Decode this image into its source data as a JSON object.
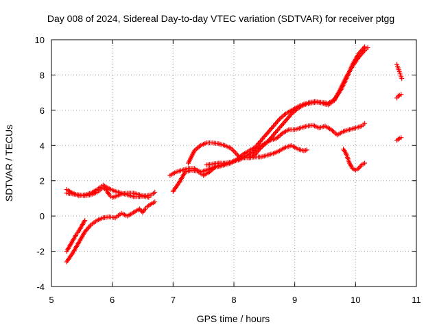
{
  "chart_data": {
    "type": "scatter",
    "title": "Day 008 of 2024, Sidereal Day-to-day VTEC variation (SDTVAR) for receiver ptgg",
    "xlabel": "GPS time / hours",
    "ylabel": "SDTVAR / TECUs",
    "xlim": [
      5,
      11
    ],
    "ylim": [
      -4,
      10
    ],
    "xticks": [
      "5",
      "6",
      "7",
      "8",
      "9",
      "10",
      "11"
    ],
    "yticks": [
      "-4",
      "-2",
      "0",
      "2",
      "4",
      "6",
      "8",
      "10"
    ],
    "grid": true,
    "marker": "plus",
    "color": "#ff0000",
    "series": [
      {
        "x": [
          5.25,
          5.35,
          5.45,
          5.55,
          5.65,
          5.75,
          5.85,
          5.95,
          6.05,
          6.15,
          6.25,
          6.35,
          6.45,
          6.55,
          6.65,
          6.7
        ],
        "y": [
          1.5,
          1.3,
          1.15,
          1.2,
          1.3,
          1.5,
          1.75,
          1.55,
          1.4,
          1.3,
          1.2,
          1.1,
          1.1,
          1.15,
          1.2,
          1.35
        ]
      },
      {
        "x": [
          5.25,
          5.35,
          5.45,
          5.55,
          5.65,
          5.75,
          5.85,
          5.9,
          5.95,
          6.0,
          6.05,
          6.15,
          6.25,
          6.35,
          6.45,
          6.55,
          6.6
        ],
        "y": [
          1.3,
          1.25,
          1.2,
          1.15,
          1.2,
          1.35,
          1.6,
          1.5,
          1.2,
          1.05,
          1.1,
          1.25,
          1.3,
          1.3,
          1.2,
          1.1,
          1.05
        ]
      },
      {
        "x": [
          5.25,
          5.3,
          5.35,
          5.4,
          5.45,
          5.5,
          5.55
        ],
        "y": [
          -2.0,
          -1.7,
          -1.4,
          -1.1,
          -0.85,
          -0.55,
          -0.25
        ]
      },
      {
        "x": [
          5.25,
          5.35,
          5.45,
          5.55,
          5.65,
          5.75,
          5.85,
          5.95,
          6.05,
          6.15,
          6.25,
          6.35,
          6.45,
          6.5,
          6.55,
          6.6,
          6.7
        ],
        "y": [
          -2.6,
          -2.1,
          -1.5,
          -0.9,
          -0.5,
          -0.25,
          -0.1,
          -0.05,
          -0.1,
          0.15,
          0.0,
          0.2,
          0.4,
          0.2,
          0.45,
          0.6,
          0.8
        ]
      },
      {
        "x": [
          6.95,
          7.05,
          7.15,
          7.25,
          7.35,
          7.45,
          7.55,
          7.65,
          7.75,
          7.85,
          7.95,
          8.05,
          8.15,
          8.25,
          8.35,
          8.45,
          8.55,
          8.65,
          8.75,
          8.85,
          8.95,
          9.05,
          9.15,
          9.2
        ],
        "y": [
          2.3,
          2.5,
          2.6,
          2.7,
          2.7,
          2.5,
          2.6,
          2.75,
          2.8,
          2.9,
          3.0,
          3.2,
          3.3,
          3.3,
          3.35,
          3.35,
          3.45,
          3.55,
          3.7,
          3.9,
          4.0,
          3.8,
          3.7,
          3.75
        ]
      },
      {
        "x": [
          7.0,
          7.1,
          7.2,
          7.3,
          7.4,
          7.5,
          7.6,
          7.7,
          7.8,
          7.9,
          8.0,
          8.1,
          8.2,
          8.3,
          8.4,
          8.5,
          8.6,
          8.7,
          8.8,
          8.9,
          9.0,
          9.1,
          9.2,
          9.3,
          9.4,
          9.5,
          9.6,
          9.7,
          9.8,
          9.9,
          10.0,
          10.1,
          10.15
        ],
        "y": [
          1.4,
          1.9,
          2.5,
          2.6,
          2.55,
          2.3,
          2.5,
          2.8,
          2.9,
          3.0,
          3.1,
          3.2,
          3.4,
          3.6,
          3.9,
          4.1,
          4.3,
          4.4,
          4.7,
          4.9,
          4.9,
          5.0,
          5.1,
          5.15,
          5.0,
          5.1,
          4.9,
          4.6,
          4.8,
          4.9,
          5.0,
          5.1,
          5.25
        ]
      },
      {
        "x": [
          7.25,
          7.35,
          7.45,
          7.55,
          7.65,
          7.75,
          7.85,
          7.95,
          8.05,
          8.1
        ],
        "y": [
          3.0,
          3.7,
          4.0,
          4.15,
          4.15,
          4.1,
          4.0,
          3.85,
          3.5,
          3.3
        ]
      },
      {
        "x": [
          7.55,
          7.65,
          7.75,
          7.85,
          7.95,
          8.05,
          8.15,
          8.25,
          8.35,
          8.45,
          8.55,
          8.65,
          8.75,
          8.85,
          8.95,
          9.05,
          9.15,
          9.25,
          9.35,
          9.45,
          9.55,
          9.65,
          9.75,
          9.85,
          9.95,
          10.05,
          10.15,
          10.2
        ],
        "y": [
          2.9,
          2.95,
          3.0,
          3.0,
          3.05,
          3.2,
          3.5,
          3.7,
          3.9,
          4.3,
          4.7,
          5.1,
          5.5,
          5.8,
          6.0,
          6.2,
          6.35,
          6.45,
          6.5,
          6.4,
          6.3,
          6.55,
          7.2,
          7.9,
          8.5,
          9.0,
          9.4,
          9.55
        ]
      },
      {
        "x": [
          8.25,
          8.35,
          8.45,
          8.55,
          8.65,
          8.75,
          8.85,
          8.95,
          9.05,
          9.15,
          9.25,
          9.35,
          9.45,
          9.55,
          9.65,
          9.75,
          9.85,
          9.95,
          10.05,
          10.15
        ],
        "y": [
          3.3,
          3.5,
          3.9,
          4.2,
          4.6,
          5.0,
          5.4,
          5.8,
          6.1,
          6.3,
          6.4,
          6.45,
          6.45,
          6.4,
          6.6,
          7.1,
          7.8,
          8.6,
          9.2,
          9.6
        ]
      },
      {
        "x": [
          9.8,
          9.85,
          9.9,
          9.95,
          10.0,
          10.05,
          10.1,
          10.15
        ],
        "y": [
          3.8,
          3.5,
          3.0,
          2.7,
          2.6,
          2.7,
          2.9,
          3.0
        ]
      },
      {
        "x": [
          10.68,
          10.7,
          10.72,
          10.74,
          10.76
        ],
        "y": [
          8.6,
          8.4,
          8.2,
          8.0,
          7.8
        ]
      },
      {
        "x": [
          10.68,
          10.7,
          10.72,
          10.75
        ],
        "y": [
          6.7,
          6.8,
          6.85,
          6.9
        ]
      },
      {
        "x": [
          10.68,
          10.7,
          10.72,
          10.75
        ],
        "y": [
          4.3,
          4.35,
          4.4,
          4.45
        ]
      }
    ]
  }
}
